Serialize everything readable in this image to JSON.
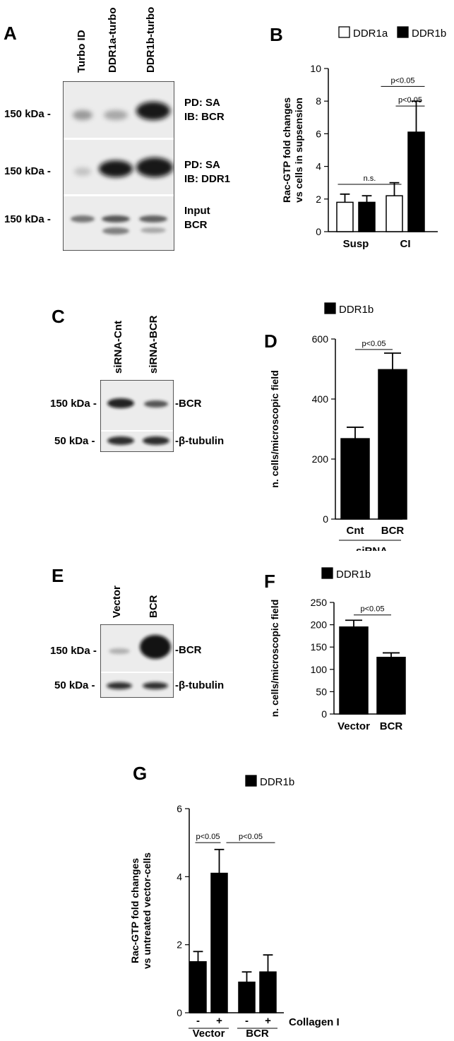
{
  "panels": {
    "A": {
      "letter": "A",
      "lanes": [
        "Turbo ID",
        "DDR1a-turbo",
        "DDR1b-turbo"
      ],
      "rows": [
        {
          "kda": "150 kDa -",
          "label1": "PD: SA",
          "label2": "IB: BCR"
        },
        {
          "kda": "150 kDa -",
          "label1": "PD: SA",
          "label2": "IB: DDR1"
        },
        {
          "kda": "150 kDa -",
          "label1": "Input",
          "label2": "BCR"
        }
      ]
    },
    "C": {
      "letter": "C",
      "lanes": [
        "siRNA-Cnt",
        "siRNA-BCR"
      ],
      "rows": [
        {
          "kda": "150 kDa -",
          "label": "-BCR"
        },
        {
          "kda": "50 kDa -",
          "label": "-β-tubulin"
        }
      ]
    },
    "E": {
      "letter": "E",
      "lanes": [
        "Vector",
        "BCR"
      ],
      "rows": [
        {
          "kda": "150 kDa -",
          "label": "-BCR"
        },
        {
          "kda": "50 kDa -",
          "label": "-β-tubulin"
        }
      ]
    }
  },
  "chart_data": [
    {
      "panel": "B",
      "type": "bar",
      "categories": [
        "Susp",
        "CI"
      ],
      "series": [
        {
          "name": "DDR1a",
          "values": [
            1.8,
            2.2
          ],
          "errors": [
            0.5,
            0.8
          ],
          "color": "#ffffff"
        },
        {
          "name": "DDR1b",
          "values": [
            1.8,
            6.1
          ],
          "errors": [
            0.4,
            1.9
          ],
          "color": "#000000"
        }
      ],
      "ylabel": "Rac-GTP fold changes vs cells in supsension",
      "ylim": [
        0,
        10
      ],
      "yticks": [
        0,
        2,
        4,
        6,
        8,
        10
      ],
      "legend": "top",
      "annotations": [
        "n.s.",
        "p<0.05",
        "p<0.05"
      ]
    },
    {
      "panel": "D",
      "type": "bar",
      "categories": [
        "Cnt",
        "BCR"
      ],
      "group_label": "siRNA",
      "series": [
        {
          "name": "DDR1b",
          "values": [
            268,
            498
          ],
          "errors": [
            38,
            55
          ],
          "color": "#000000"
        }
      ],
      "ylabel": "n. cells/microscopic field",
      "ylim": [
        0,
        600
      ],
      "yticks": [
        0,
        200,
        400,
        600
      ],
      "legend": "top",
      "annotations": [
        "p<0.05"
      ]
    },
    {
      "panel": "F",
      "type": "bar",
      "categories": [
        "Vector",
        "BCR"
      ],
      "series": [
        {
          "name": "DDR1b",
          "values": [
            195,
            127
          ],
          "errors": [
            15,
            10
          ],
          "color": "#000000"
        }
      ],
      "ylabel": "n. cells/microscopic field",
      "ylim": [
        0,
        250
      ],
      "yticks": [
        0,
        50,
        100,
        150,
        200,
        250
      ],
      "legend": "top",
      "annotations": [
        "p<0.05"
      ]
    },
    {
      "panel": "G",
      "type": "bar",
      "categories": [
        "-",
        "+",
        "-",
        "+"
      ],
      "groups": [
        "Vector",
        "BCR"
      ],
      "treatment_label": "Collagen I",
      "series": [
        {
          "name": "DDR1b",
          "values": [
            1.5,
            4.1,
            0.9,
            1.2
          ],
          "errors": [
            0.3,
            0.7,
            0.3,
            0.5
          ],
          "color": "#000000"
        }
      ],
      "ylabel": "Rac-GTP fold changes vs untreated vector-cells",
      "ylim": [
        0,
        6
      ],
      "yticks": [
        0,
        2,
        4,
        6
      ],
      "legend": "top",
      "annotations": [
        "p<0.05",
        "p<0.05"
      ]
    }
  ]
}
